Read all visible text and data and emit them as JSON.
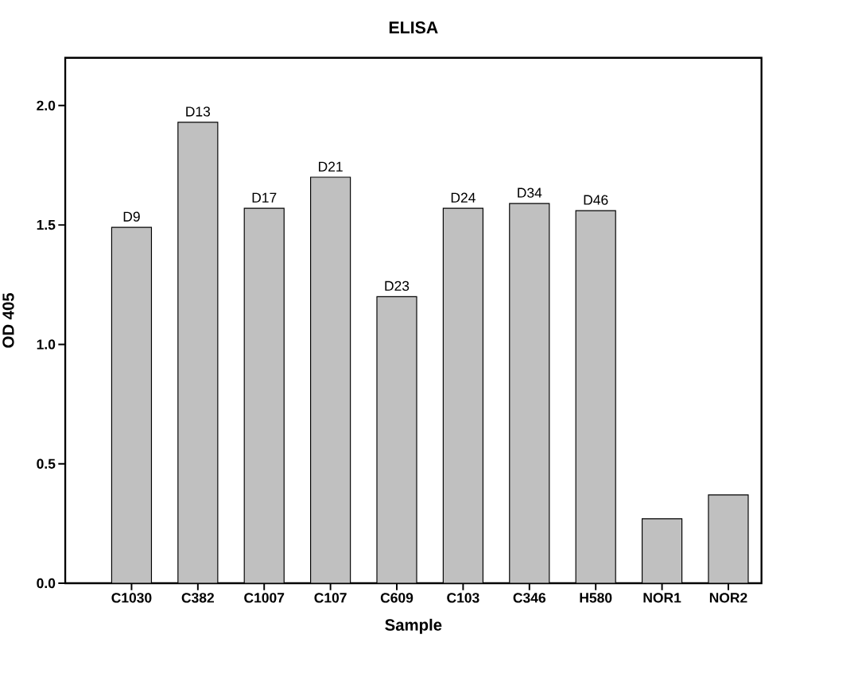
{
  "chart_data": {
    "type": "bar",
    "title": "ELISA",
    "xlabel": "Sample",
    "ylabel": "OD 405",
    "categories": [
      "C1030",
      "C382",
      "C1007",
      "C107",
      "C609",
      "C103",
      "C346",
      "H580",
      "NOR1",
      "NOR2"
    ],
    "values": [
      1.49,
      1.93,
      1.57,
      1.7,
      1.2,
      1.57,
      1.59,
      1.56,
      0.27,
      0.37
    ],
    "value_labels": [
      "D9",
      "D13",
      "D17",
      "D21",
      "D23",
      "D24",
      "D34",
      "D46",
      null,
      null
    ],
    "color": "#c0c0c0",
    "ylim": [
      0,
      2.2
    ],
    "yticks": [
      {
        "value": 0,
        "label": "0.0"
      },
      {
        "value": 0.5,
        "label": "0.5"
      },
      {
        "value": 1,
        "label": "1.0"
      },
      {
        "value": 1.5,
        "label": "1.5"
      },
      {
        "value": 2,
        "label": "2.0"
      }
    ]
  }
}
